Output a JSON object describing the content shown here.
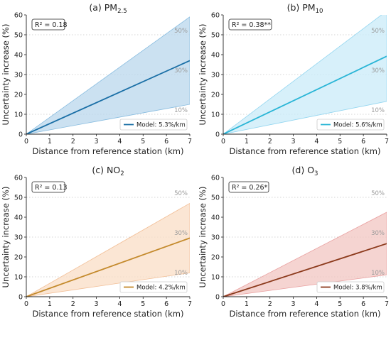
{
  "figure": {
    "xlabel": "Distance from reference station (km)",
    "ylabel": "Uncertainty increase (%)"
  },
  "chart_data": [
    {
      "type": "line",
      "title": "(a) PM2.5",
      "title_main": "(a) PM",
      "title_sub": "2.5",
      "r2_label": "R² = 0.18",
      "legend_label": "Model: 5.3%/km",
      "legend_position": "lower-right",
      "line_color": "#1a6fa6",
      "band_color": "#b9d7ec",
      "band_edge_color": "#89bde0",
      "xlim": [
        0,
        7
      ],
      "ylim": [
        0,
        60
      ],
      "xticks": [
        0,
        1,
        2,
        3,
        4,
        5,
        6,
        7
      ],
      "yticks": [
        0,
        10,
        20,
        30,
        40,
        50,
        60
      ],
      "model_line": {
        "x": [
          0,
          7
        ],
        "y": [
          0,
          37
        ]
      },
      "band": {
        "x": [
          0,
          7
        ],
        "lower": [
          0,
          15
        ],
        "upper": [
          0,
          59
        ]
      },
      "reference_lines": [
        {
          "y": 50,
          "label": "50%"
        },
        {
          "y": 30,
          "label": "30%"
        },
        {
          "y": 10,
          "label": "10%"
        }
      ],
      "grid": false
    },
    {
      "type": "line",
      "title": "(b) PM10",
      "title_main": "(b) PM",
      "title_sub": "10",
      "r2_label": "R² = 0.38**",
      "legend_label": "Model: 5.6%/km",
      "legend_position": "lower-right",
      "line_color": "#29b5d6",
      "band_color": "#c9ebf8",
      "band_edge_color": "#93d6f0",
      "xlim": [
        0,
        7
      ],
      "ylim": [
        0,
        60
      ],
      "xticks": [
        0,
        1,
        2,
        3,
        4,
        5,
        6,
        7
      ],
      "yticks": [
        0,
        10,
        20,
        30,
        40,
        50,
        60
      ],
      "model_line": {
        "x": [
          0,
          7
        ],
        "y": [
          0,
          39.2
        ]
      },
      "band": {
        "x": [
          0,
          7
        ],
        "lower": [
          0,
          16.5
        ],
        "upper": [
          0,
          62
        ]
      },
      "reference_lines": [
        {
          "y": 50,
          "label": "50%"
        },
        {
          "y": 30,
          "label": "30%"
        },
        {
          "y": 10,
          "label": "10%"
        }
      ],
      "grid": false
    },
    {
      "type": "line",
      "title": "(c) NO2",
      "title_main": "(c) NO",
      "title_sub": "2",
      "r2_label": "R² = 0.13",
      "legend_label": "Model: 4.2%/km",
      "legend_position": "lower-right",
      "line_color": "#c48a2c",
      "band_color": "#f9ddc6",
      "band_edge_color": "#f2bf97",
      "xlim": [
        0,
        7
      ],
      "ylim": [
        0,
        60
      ],
      "xticks": [
        0,
        1,
        2,
        3,
        4,
        5,
        6,
        7
      ],
      "yticks": [
        0,
        10,
        20,
        30,
        40,
        50,
        60
      ],
      "model_line": {
        "x": [
          0,
          7
        ],
        "y": [
          0,
          29.5
        ]
      },
      "band": {
        "x": [
          0,
          7
        ],
        "lower": [
          0,
          12
        ],
        "upper": [
          0,
          47
        ]
      },
      "reference_lines": [
        {
          "y": 50,
          "label": "50%"
        },
        {
          "y": 30,
          "label": "30%"
        },
        {
          "y": 10,
          "label": "10%"
        }
      ],
      "grid": false
    },
    {
      "type": "line",
      "title": "(d) O3",
      "title_main": "(d) O",
      "title_sub": "3",
      "r2_label": "R² = 0.26*",
      "legend_label": "Model: 3.8%/km",
      "legend_position": "lower-right",
      "line_color": "#8c3a1c",
      "band_color": "#f1c6c1",
      "band_edge_color": "#e9a0a0",
      "xlim": [
        0,
        7
      ],
      "ylim": [
        0,
        60
      ],
      "xticks": [
        0,
        1,
        2,
        3,
        4,
        5,
        6,
        7
      ],
      "yticks": [
        0,
        10,
        20,
        30,
        40,
        50,
        60
      ],
      "model_line": {
        "x": [
          0,
          7
        ],
        "y": [
          0,
          26.7
        ]
      },
      "band": {
        "x": [
          0,
          7
        ],
        "lower": [
          0,
          11
        ],
        "upper": [
          0,
          42.5
        ]
      },
      "reference_lines": [
        {
          "y": 50,
          "label": "50%"
        },
        {
          "y": 30,
          "label": "30%"
        },
        {
          "y": 10,
          "label": "10%"
        }
      ],
      "grid": false
    }
  ]
}
